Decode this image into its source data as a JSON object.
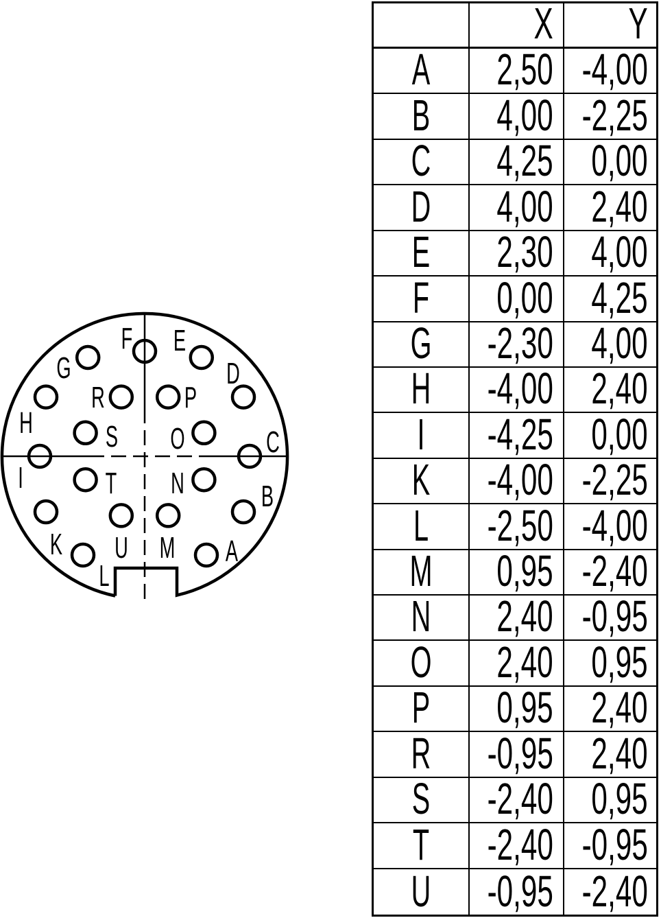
{
  "table": {
    "headers": [
      "",
      "X",
      "Y"
    ],
    "rows": [
      {
        "pin": "A",
        "x": "2,50",
        "y": "-4,00"
      },
      {
        "pin": "B",
        "x": "4,00",
        "y": "-2,25"
      },
      {
        "pin": "C",
        "x": "4,25",
        "y": "0,00"
      },
      {
        "pin": "D",
        "x": "4,00",
        "y": "2,40"
      },
      {
        "pin": "E",
        "x": "2,30",
        "y": "4,00"
      },
      {
        "pin": "F",
        "x": "0,00",
        "y": "4,25"
      },
      {
        "pin": "G",
        "x": "-2,30",
        "y": "4,00"
      },
      {
        "pin": "H",
        "x": "-4,00",
        "y": "2,40"
      },
      {
        "pin": "I",
        "x": "-4,25",
        "y": "0,00"
      },
      {
        "pin": "K",
        "x": "-4,00",
        "y": "-2,25"
      },
      {
        "pin": "L",
        "x": "-2,50",
        "y": "-4,00"
      },
      {
        "pin": "M",
        "x": "0,95",
        "y": "-2,40"
      },
      {
        "pin": "N",
        "x": "2,40",
        "y": "-0,95"
      },
      {
        "pin": "O",
        "x": "2,40",
        "y": "0,95"
      },
      {
        "pin": "P",
        "x": "0,95",
        "y": "2,40"
      },
      {
        "pin": "R",
        "x": "-0,95",
        "y": "2,40"
      },
      {
        "pin": "S",
        "x": "-2,40",
        "y": "0,95"
      },
      {
        "pin": "T",
        "x": "-2,40",
        "y": "-0,95"
      },
      {
        "pin": "U",
        "x": "-0,95",
        "y": "-2,40"
      }
    ]
  },
  "diagram": {
    "pins": [
      {
        "label": "A",
        "x": 2.5,
        "y": -4.0
      },
      {
        "label": "B",
        "x": 4.0,
        "y": -2.25
      },
      {
        "label": "C",
        "x": 4.25,
        "y": 0.0
      },
      {
        "label": "D",
        "x": 4.0,
        "y": 2.4
      },
      {
        "label": "E",
        "x": 2.3,
        "y": 4.0
      },
      {
        "label": "F",
        "x": 0.0,
        "y": 4.25
      },
      {
        "label": "G",
        "x": -2.3,
        "y": 4.0
      },
      {
        "label": "H",
        "x": -4.0,
        "y": 2.4
      },
      {
        "label": "I",
        "x": -4.25,
        "y": 0.0
      },
      {
        "label": "K",
        "x": -4.0,
        "y": -2.25
      },
      {
        "label": "L",
        "x": -2.5,
        "y": -4.0
      },
      {
        "label": "M",
        "x": 0.95,
        "y": -2.4
      },
      {
        "label": "N",
        "x": 2.4,
        "y": -0.95
      },
      {
        "label": "O",
        "x": 2.4,
        "y": 0.95
      },
      {
        "label": "P",
        "x": 0.95,
        "y": 2.4
      },
      {
        "label": "R",
        "x": -0.95,
        "y": 2.4
      },
      {
        "label": "S",
        "x": -2.4,
        "y": 0.95
      },
      {
        "label": "T",
        "x": -2.4,
        "y": -0.95
      },
      {
        "label": "U",
        "x": -0.95,
        "y": -2.4
      }
    ]
  }
}
